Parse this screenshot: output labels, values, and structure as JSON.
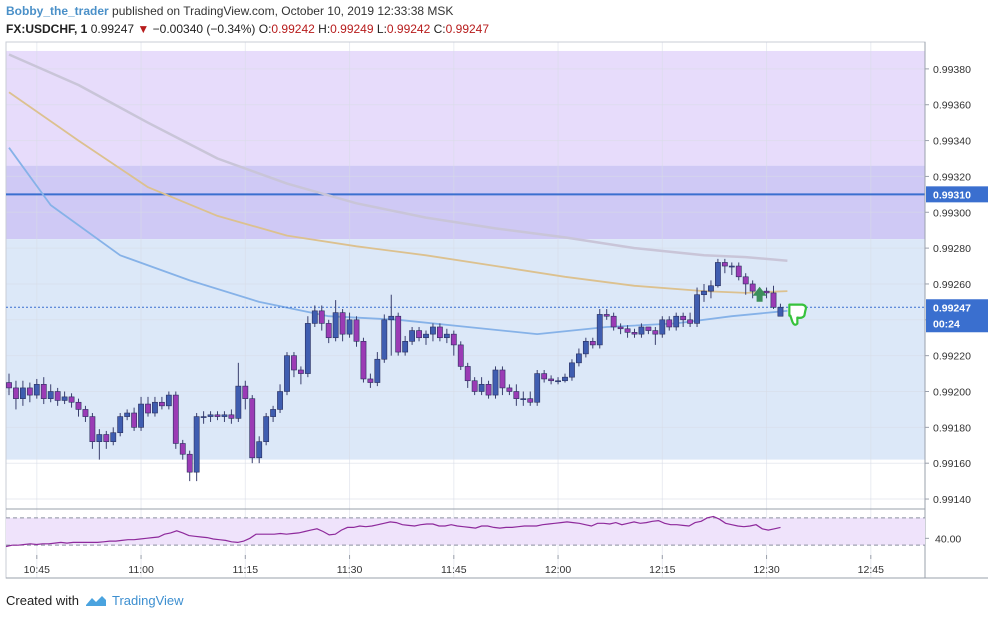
{
  "header": {
    "user": "Bobby_the_trader",
    "published": "published on TradingView.com, October 10, 2019 12:33:38 MSK",
    "symbol": "FX:USDCHF, 1",
    "last": "0.99247",
    "arrow": "▼",
    "change": "−0.00340 (−0.34%)",
    "o_label": "O:",
    "o": "0.99242",
    "h_label": "H:",
    "h": "0.99249",
    "l_label": "L:",
    "l": "0.99242",
    "c_label": "C:",
    "c": "0.99247"
  },
  "footer": {
    "created": "Created with",
    "brand": "TradingView"
  },
  "colors": {
    "up": "#3f5db0",
    "down": "#9b3bb5",
    "zone_upper": "#e7dcfb",
    "zone_mid": "#cfc9f5",
    "zone_lower": "#dce8f8",
    "hline": "#3a6fcf",
    "ma_fast": "#86b2e8",
    "ma_mid": "#dcc18f",
    "ma_slow": "#c9c5d8",
    "rsi": "#8e2a9c",
    "rsi_band": "#efe3fb",
    "price_label": "#3a6fcf"
  },
  "chart_data": [
    {
      "type": "candlestick",
      "title": "",
      "x_axis": {
        "ticks": [
          "10:45",
          "11:00",
          "11:15",
          "11:30",
          "11:45",
          "12:00",
          "12:15",
          "12:30",
          "12:45"
        ]
      },
      "y_axis": {
        "range": [
          0.99135,
          0.99395
        ],
        "ticks": [
          "0.99140",
          "0.99160",
          "0.99180",
          "0.99200",
          "0.99220",
          "0.99240",
          "0.99260",
          "0.99280",
          "0.99300",
          "0.99320",
          "0.99340",
          "0.99360",
          "0.99380"
        ]
      },
      "last_price_label": "0.99247",
      "countdown_label": "00:24",
      "hline": {
        "value": 0.9931,
        "label": "0.99310"
      },
      "zones": [
        {
          "name": "upper",
          "from": 0.9939,
          "to": 0.99326
        },
        {
          "name": "mid",
          "from": 0.99326,
          "to": 0.99285
        },
        {
          "name": "lower",
          "from": 0.99285,
          "to": 0.99162
        }
      ],
      "start_time": "10:41",
      "candles": [
        [
          0.99205,
          0.99202,
          0.9921,
          0.99198
        ],
        [
          0.99202,
          0.99196,
          0.99206,
          0.9919
        ],
        [
          0.99196,
          0.99202,
          0.99206,
          0.99192
        ],
        [
          0.99202,
          0.99198,
          0.99205,
          0.99194
        ],
        [
          0.99198,
          0.99204,
          0.99207,
          0.99196
        ],
        [
          0.99204,
          0.99196,
          0.99208,
          0.99193
        ],
        [
          0.99196,
          0.992,
          0.99204,
          0.99194
        ],
        [
          0.992,
          0.99195,
          0.99202,
          0.99192
        ],
        [
          0.99195,
          0.99197,
          0.992,
          0.99193
        ],
        [
          0.99197,
          0.99194,
          0.99199,
          0.99191
        ],
        [
          0.99194,
          0.9919,
          0.99196,
          0.99186
        ],
        [
          0.9919,
          0.99186,
          0.99192,
          0.99183
        ],
        [
          0.99186,
          0.99172,
          0.99188,
          0.99168
        ],
        [
          0.99172,
          0.99176,
          0.99179,
          0.99162
        ],
        [
          0.99176,
          0.99172,
          0.99178,
          0.99168
        ],
        [
          0.99172,
          0.99177,
          0.9918,
          0.9917
        ],
        [
          0.99177,
          0.99186,
          0.99188,
          0.99175
        ],
        [
          0.99186,
          0.99188,
          0.9919,
          0.99184
        ],
        [
          0.99188,
          0.9918,
          0.99191,
          0.99178
        ],
        [
          0.9918,
          0.99193,
          0.99197,
          0.99178
        ],
        [
          0.99193,
          0.99188,
          0.99197,
          0.99186
        ],
        [
          0.99188,
          0.99194,
          0.99197,
          0.99186
        ],
        [
          0.99194,
          0.99192,
          0.99197,
          0.9919
        ],
        [
          0.99192,
          0.99198,
          0.992,
          0.9919
        ],
        [
          0.99198,
          0.99171,
          0.992,
          0.99168
        ],
        [
          0.99171,
          0.99165,
          0.99173,
          0.99162
        ],
        [
          0.99165,
          0.99155,
          0.99167,
          0.9915
        ],
        [
          0.99155,
          0.99186,
          0.99188,
          0.9915
        ],
        [
          0.99186,
          0.99186,
          0.99189,
          0.99182
        ],
        [
          0.99186,
          0.99187,
          0.99189,
          0.99183
        ],
        [
          0.99187,
          0.99186,
          0.99189,
          0.99184
        ],
        [
          0.99186,
          0.99187,
          0.99189,
          0.99183
        ],
        [
          0.99187,
          0.99185,
          0.9919,
          0.99182
        ],
        [
          0.99185,
          0.99203,
          0.99216,
          0.99183
        ],
        [
          0.99203,
          0.99196,
          0.99206,
          0.9919
        ],
        [
          0.99196,
          0.99163,
          0.99198,
          0.9916
        ],
        [
          0.99163,
          0.99172,
          0.99175,
          0.9916
        ],
        [
          0.99172,
          0.99186,
          0.99188,
          0.9917
        ],
        [
          0.99186,
          0.9919,
          0.99192,
          0.99183
        ],
        [
          0.9919,
          0.992,
          0.99204,
          0.99188
        ],
        [
          0.992,
          0.9922,
          0.99222,
          0.99198
        ],
        [
          0.9922,
          0.99212,
          0.99222,
          0.99208
        ],
        [
          0.99212,
          0.9921,
          0.99214,
          0.99204
        ],
        [
          0.9921,
          0.99238,
          0.99242,
          0.99208
        ],
        [
          0.99238,
          0.99245,
          0.99248,
          0.99236
        ],
        [
          0.99245,
          0.99238,
          0.99248,
          0.99234
        ],
        [
          0.99238,
          0.9923,
          0.9924,
          0.99227
        ],
        [
          0.9923,
          0.99244,
          0.99251,
          0.99228
        ],
        [
          0.99244,
          0.99232,
          0.99246,
          0.99228
        ],
        [
          0.99232,
          0.9924,
          0.99244,
          0.9923
        ],
        [
          0.9924,
          0.99228,
          0.99242,
          0.99225
        ],
        [
          0.99228,
          0.99207,
          0.9923,
          0.99205
        ],
        [
          0.99207,
          0.99205,
          0.9921,
          0.99202
        ],
        [
          0.99205,
          0.99218,
          0.99222,
          0.99203
        ],
        [
          0.99218,
          0.9924,
          0.99243,
          0.99216
        ],
        [
          0.9924,
          0.99242,
          0.99254,
          0.9922
        ],
        [
          0.99242,
          0.99222,
          0.99244,
          0.9922
        ],
        [
          0.99222,
          0.99228,
          0.99231,
          0.9922
        ],
        [
          0.99228,
          0.99234,
          0.99236,
          0.99226
        ],
        [
          0.99234,
          0.9923,
          0.99236,
          0.99228
        ],
        [
          0.9923,
          0.99232,
          0.99234,
          0.99226
        ],
        [
          0.99232,
          0.99236,
          0.99238,
          0.99228
        ],
        [
          0.99236,
          0.9923,
          0.99238,
          0.99228
        ],
        [
          0.9923,
          0.99232,
          0.99235,
          0.99227
        ],
        [
          0.99232,
          0.99226,
          0.99234,
          0.9922
        ],
        [
          0.99226,
          0.99214,
          0.99228,
          0.99212
        ],
        [
          0.99214,
          0.99206,
          0.99216,
          0.99202
        ],
        [
          0.99206,
          0.992,
          0.99208,
          0.99198
        ],
        [
          0.992,
          0.99204,
          0.99208,
          0.99198
        ],
        [
          0.99204,
          0.99198,
          0.99206,
          0.99196
        ],
        [
          0.99198,
          0.99212,
          0.99214,
          0.99196
        ],
        [
          0.99212,
          0.99202,
          0.99214,
          0.99198
        ],
        [
          0.99202,
          0.992,
          0.99204,
          0.99198
        ],
        [
          0.992,
          0.99196,
          0.99204,
          0.99192
        ],
        [
          0.99196,
          0.99196,
          0.992,
          0.99192
        ],
        [
          0.99196,
          0.99194,
          0.992,
          0.99192
        ],
        [
          0.99194,
          0.9921,
          0.99212,
          0.99192
        ],
        [
          0.9921,
          0.99207,
          0.99212,
          0.99205
        ],
        [
          0.99207,
          0.99206,
          0.99209,
          0.99204
        ],
        [
          0.99206,
          0.99206,
          0.99208,
          0.99204
        ],
        [
          0.99206,
          0.99208,
          0.9921,
          0.99205
        ],
        [
          0.99208,
          0.99216,
          0.99218,
          0.99206
        ],
        [
          0.99216,
          0.99221,
          0.99224,
          0.99214
        ],
        [
          0.99221,
          0.99228,
          0.9923,
          0.99219
        ],
        [
          0.99228,
          0.99226,
          0.9923,
          0.99224
        ],
        [
          0.99226,
          0.99243,
          0.99246,
          0.99224
        ],
        [
          0.99243,
          0.99242,
          0.99246,
          0.9924
        ],
        [
          0.99242,
          0.99236,
          0.99244,
          0.99234
        ],
        [
          0.99236,
          0.99235,
          0.99238,
          0.99232
        ],
        [
          0.99235,
          0.99233,
          0.99237,
          0.9923
        ],
        [
          0.99233,
          0.99232,
          0.99235,
          0.9923
        ],
        [
          0.99232,
          0.99236,
          0.99238,
          0.9923
        ],
        [
          0.99236,
          0.99234,
          0.99236,
          0.99232
        ],
        [
          0.99234,
          0.99232,
          0.99236,
          0.99226
        ],
        [
          0.99232,
          0.9924,
          0.99242,
          0.9923
        ],
        [
          0.9924,
          0.99236,
          0.99242,
          0.99234
        ],
        [
          0.99236,
          0.99242,
          0.99244,
          0.99234
        ],
        [
          0.99242,
          0.9924,
          0.99244,
          0.99236
        ],
        [
          0.9924,
          0.99238,
          0.99244,
          0.99236
        ],
        [
          0.99238,
          0.99254,
          0.99258,
          0.99236
        ],
        [
          0.99254,
          0.99256,
          0.9926,
          0.9925
        ],
        [
          0.99256,
          0.99259,
          0.99262,
          0.99252
        ],
        [
          0.99259,
          0.99272,
          0.99274,
          0.99258
        ],
        [
          0.99272,
          0.9927,
          0.99274,
          0.99266
        ],
        [
          0.9927,
          0.9927,
          0.99272,
          0.99265
        ],
        [
          0.9927,
          0.99264,
          0.99272,
          0.99262
        ],
        [
          0.99264,
          0.9926,
          0.99266,
          0.99254
        ],
        [
          0.9926,
          0.99256,
          0.99262,
          0.99252
        ],
        [
          0.99256,
          0.99256,
          0.99258,
          0.99254
        ],
        [
          0.99256,
          0.99255,
          0.99258,
          0.99252
        ],
        [
          0.99255,
          0.99247,
          0.99259,
          0.99246
        ],
        [
          0.99242,
          0.99247,
          0.99249,
          0.99242
        ]
      ],
      "ma_fast": [
        [
          0,
          0.99336
        ],
        [
          6,
          0.99304
        ],
        [
          16,
          0.99276
        ],
        [
          26,
          0.99262
        ],
        [
          36,
          0.9925
        ],
        [
          46,
          0.99242
        ],
        [
          56,
          0.9924
        ],
        [
          66,
          0.99236
        ],
        [
          76,
          0.99232
        ],
        [
          86,
          0.99236
        ],
        [
          96,
          0.99238
        ],
        [
          104,
          0.99242
        ],
        [
          112,
          0.99245
        ]
      ],
      "ma_mid": [
        [
          0,
          0.99367
        ],
        [
          10,
          0.9934
        ],
        [
          20,
          0.99314
        ],
        [
          30,
          0.99298
        ],
        [
          40,
          0.99287
        ],
        [
          50,
          0.99281
        ],
        [
          60,
          0.99276
        ],
        [
          70,
          0.9927
        ],
        [
          80,
          0.99264
        ],
        [
          90,
          0.99259
        ],
        [
          100,
          0.99256
        ],
        [
          106,
          0.99255
        ],
        [
          112,
          0.99256
        ]
      ],
      "ma_slow": [
        [
          0,
          0.99388
        ],
        [
          10,
          0.99371
        ],
        [
          20,
          0.9935
        ],
        [
          30,
          0.9933
        ],
        [
          40,
          0.99316
        ],
        [
          50,
          0.99305
        ],
        [
          60,
          0.99297
        ],
        [
          70,
          0.99291
        ],
        [
          80,
          0.99286
        ],
        [
          90,
          0.9928
        ],
        [
          100,
          0.99276
        ],
        [
          106,
          0.99275
        ],
        [
          112,
          0.99273
        ]
      ],
      "markers": [
        {
          "name": "up-arrow",
          "index": 108,
          "value": 0.99254,
          "color": "#3c8f5a"
        },
        {
          "name": "thumbs-down",
          "index": 113,
          "value": 0.99244,
          "color": "#36c23c"
        }
      ]
    },
    {
      "type": "line",
      "title": "",
      "y_axis": {
        "range": [
          20,
          80
        ],
        "ticks": [
          "40.00"
        ]
      },
      "bands": [
        30,
        70
      ],
      "series": [
        {
          "values": [
            28,
            30,
            30,
            31,
            32,
            31,
            32,
            32,
            33,
            34,
            33,
            34,
            34,
            34,
            34,
            34,
            35,
            36,
            36,
            37,
            38,
            38,
            39,
            40,
            41,
            42,
            46,
            48,
            51,
            48,
            44,
            43,
            42,
            41,
            39,
            38,
            37,
            35,
            34,
            36,
            40,
            46,
            46,
            46,
            46,
            47,
            46,
            47,
            48,
            50,
            52,
            54,
            50,
            45,
            46,
            52,
            56,
            56,
            58,
            57,
            58,
            60,
            62,
            64,
            63,
            60,
            59,
            58,
            60,
            61,
            61,
            58,
            58,
            60,
            58,
            57,
            56,
            55,
            58,
            58,
            56,
            55,
            56,
            56,
            57,
            58,
            58,
            58,
            60,
            61,
            62,
            63,
            64,
            63,
            62,
            60,
            58,
            62,
            62,
            61,
            63,
            60,
            62,
            64,
            62,
            63,
            65,
            66,
            62,
            60,
            60,
            59,
            58,
            63,
            65,
            70,
            72,
            68,
            62,
            60,
            58,
            57,
            58,
            60,
            54,
            52,
            54,
            56
          ]
        }
      ]
    }
  ]
}
